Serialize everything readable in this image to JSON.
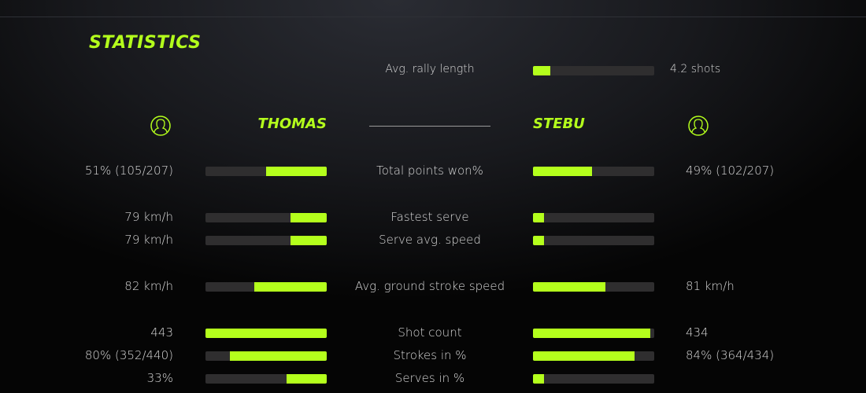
{
  "title": "STATISTICS",
  "accent": "#b4ff1c",
  "rally": {
    "label": "Avg. rally length",
    "value": "4.2 shots",
    "fill": 0.14
  },
  "players": {
    "left": {
      "name": "THOMAS",
      "icon": "user-icon"
    },
    "right": {
      "name": "STEBU",
      "icon": "user-icon"
    }
  },
  "rows": [
    {
      "label": "Total points won%",
      "left": "51% (105/207)",
      "right": "49% (102/207)",
      "lf": 0.5,
      "rf": 0.49
    },
    {
      "label": "Fastest serve",
      "left": "79 km/h",
      "right": "",
      "lf": 0.3,
      "rf": 0.09
    },
    {
      "label": "Serve avg. speed",
      "left": "79 km/h",
      "right": "",
      "lf": 0.3,
      "rf": 0.09
    },
    {
      "label": "Avg. ground stroke speed",
      "left": "82 km/h",
      "right": "81 km/h",
      "lf": 0.6,
      "rf": 0.6
    },
    {
      "label": "Shot count",
      "left": "443",
      "right": "434",
      "lf": 1.0,
      "rf": 0.97
    },
    {
      "label": "Strokes in %",
      "left": "80% (352/440)",
      "right": "84% (364/434)",
      "lf": 0.8,
      "rf": 0.84
    },
    {
      "label": "Serves in %",
      "left": "33%",
      "right": "",
      "lf": 0.33,
      "rf": 0.09
    }
  ]
}
